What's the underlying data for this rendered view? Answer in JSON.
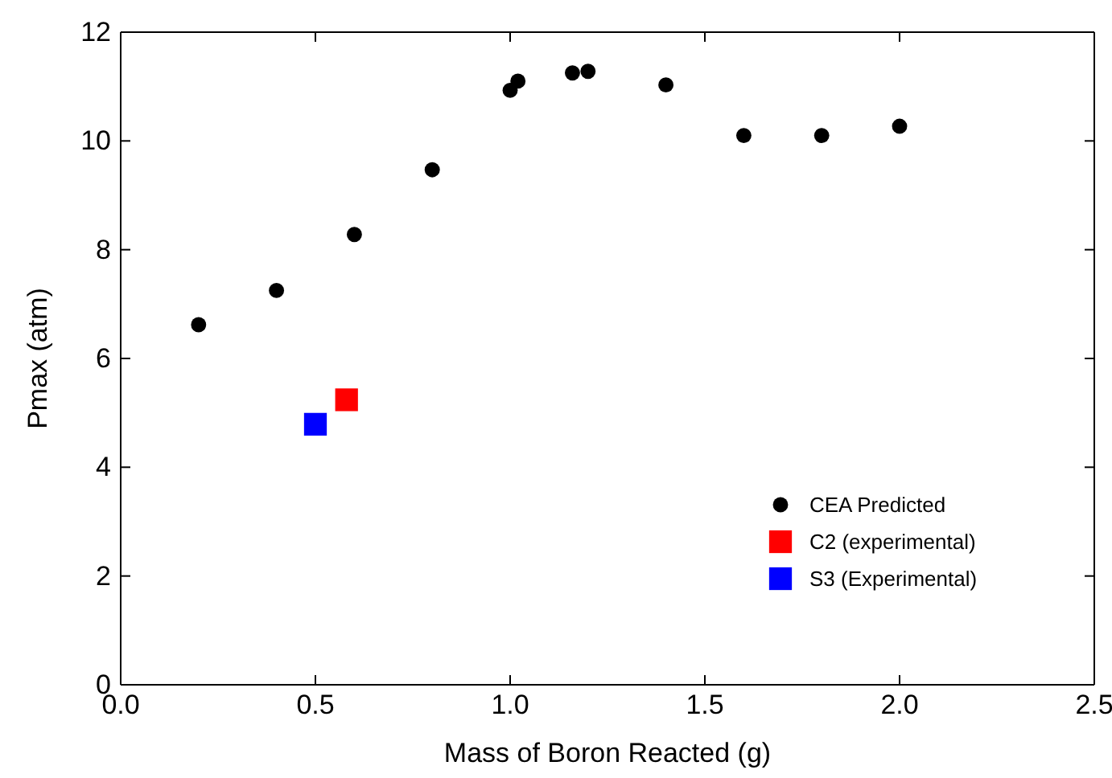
{
  "chart_data": {
    "type": "scatter",
    "xlabel": "Mass of Boron Reacted (g)",
    "ylabel": "Pmax (atm)",
    "xlim": [
      0,
      2.5
    ],
    "xticks": [
      {
        "value": 0,
        "label": "0.0"
      },
      0.5,
      {
        "value": 1,
        "label": "1.0"
      },
      1.5,
      {
        "value": 2,
        "label": "2.0"
      },
      2.5
    ],
    "ylim": [
      0,
      12
    ],
    "yticks": [
      0,
      2,
      4,
      6,
      8,
      10,
      12
    ],
    "grid": false,
    "legend": "bottom right",
    "series": [
      {
        "name": "CEA Predicted",
        "color": "#000000",
        "marker": "circle",
        "x": [
          0.2,
          0.4,
          0.6,
          0.8,
          1.0,
          1.02,
          1.16,
          1.2,
          1.4,
          1.6,
          1.8,
          2.0
        ],
        "values": [
          6.62,
          7.25,
          8.28,
          9.47,
          10.93,
          11.1,
          11.25,
          11.28,
          11.03,
          10.1,
          10.1,
          10.27
        ]
      },
      {
        "name": "C2 (experimental)",
        "color": "#ff0000",
        "marker": "square",
        "x": [
          0.58
        ],
        "values": [
          5.24
        ]
      },
      {
        "name": "S3 (Experimental)",
        "color": "#0000ff",
        "marker": "square",
        "x": [
          0.5
        ],
        "values": [
          4.79
        ]
      }
    ]
  }
}
